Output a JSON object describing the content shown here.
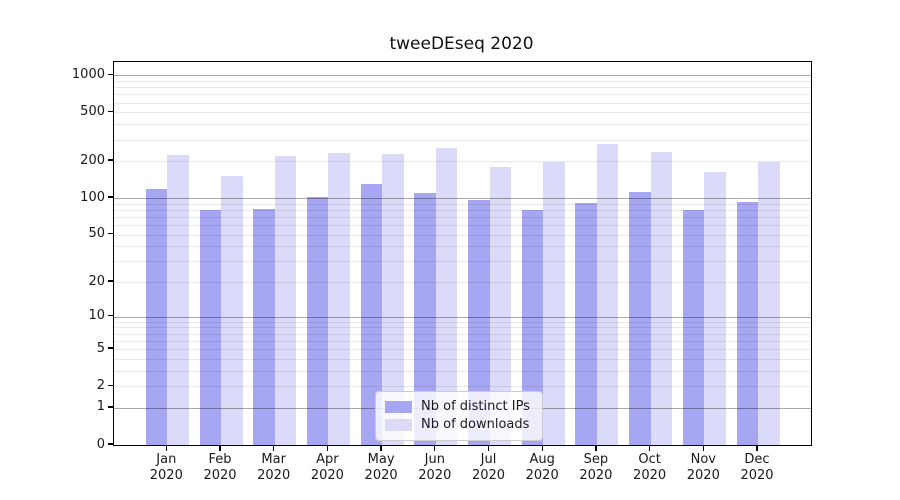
{
  "chart_data": {
    "type": "bar",
    "title": "tweeDEseq 2020",
    "months": [
      "Jan",
      "Feb",
      "Mar",
      "Apr",
      "May",
      "Jun",
      "Jul",
      "Aug",
      "Sep",
      "Oct",
      "Nov",
      "Dec"
    ],
    "year": "2020",
    "categories": [
      "Jan 2020",
      "Feb 2020",
      "Mar 2020",
      "Apr 2020",
      "May 2020",
      "Jun 2020",
      "Jul 2020",
      "Aug 2020",
      "Sep 2020",
      "Oct 2020",
      "Nov 2020",
      "Dec 2020"
    ],
    "series": [
      {
        "name": "Nb of distinct IPs",
        "color": "#a6a6f3",
        "values": [
          118,
          79,
          81,
          101,
          131,
          109,
          96,
          80,
          91,
          111,
          80,
          93
        ]
      },
      {
        "name": "Nb of downloads",
        "color": "#dbdbf9",
        "values": [
          225,
          152,
          219,
          232,
          229,
          255,
          178,
          196,
          276,
          236,
          164,
          198
        ]
      }
    ],
    "xlabel": "",
    "ylabel": "",
    "yscale": "log1p",
    "ylim": [
      0,
      1280
    ],
    "yticks": [
      1000,
      500,
      200,
      100,
      50,
      20,
      10,
      5,
      2,
      1,
      0
    ],
    "grid": true,
    "legend_position": "lower center"
  }
}
